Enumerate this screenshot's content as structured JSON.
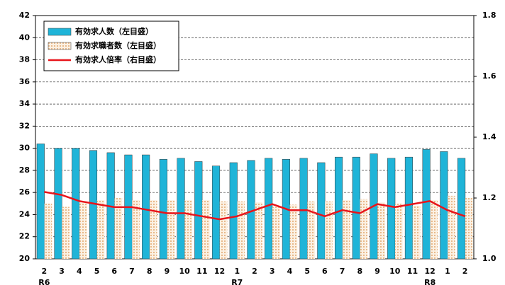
{
  "chart_data": {
    "type": "bar_line",
    "categories": [
      "2",
      "3",
      "4",
      "5",
      "6",
      "7",
      "8",
      "9",
      "10",
      "11",
      "12",
      "1",
      "2",
      "3",
      "4",
      "5",
      "6",
      "7",
      "8",
      "9",
      "10",
      "11",
      "12",
      "1",
      "2"
    ],
    "x_group_labels": [
      "R6",
      null,
      null,
      null,
      null,
      null,
      null,
      null,
      null,
      null,
      null,
      "R7",
      null,
      null,
      null,
      null,
      null,
      null,
      null,
      null,
      null,
      null,
      "R8",
      null,
      null
    ],
    "series": [
      {
        "name": "有効求人数（左目盛）",
        "color": "#1fb4d8",
        "kind": "bar",
        "values": [
          30.4,
          30.0,
          30.0,
          29.8,
          29.6,
          29.4,
          29.4,
          29.0,
          29.1,
          28.8,
          28.4,
          28.7,
          28.9,
          29.1,
          29.0,
          29.1,
          28.7,
          29.2,
          29.2,
          29.5,
          29.1,
          29.2,
          29.9,
          29.7,
          29.1
        ]
      },
      {
        "name": "有効求職者数（左目盛）",
        "color": "#f5dcc0",
        "kind": "bar",
        "values": [
          25.0,
          24.7,
          25.2,
          25.3,
          25.5,
          25.3,
          25.3,
          25.3,
          25.3,
          25.3,
          25.2,
          25.2,
          25.1,
          24.7,
          24.9,
          25.2,
          25.2,
          25.3,
          25.4,
          25.1,
          25.0,
          24.8,
          25.3,
          25.7,
          25.5
        ]
      },
      {
        "name": "有効求人倍率（右目盛）",
        "color": "#e8141a",
        "kind": "line",
        "axis": "y2",
        "values": [
          1.22,
          1.21,
          1.19,
          1.18,
          1.17,
          1.17,
          1.16,
          1.15,
          1.15,
          1.14,
          1.13,
          1.14,
          1.16,
          1.18,
          1.16,
          1.16,
          1.14,
          1.16,
          1.15,
          1.18,
          1.17,
          1.18,
          1.19,
          1.16,
          1.14
        ]
      }
    ],
    "ylim": [
      20,
      42
    ],
    "yticks": [
      20,
      22,
      24,
      26,
      28,
      30,
      32,
      34,
      36,
      38,
      40,
      42
    ],
    "y2lim": [
      1,
      1.8
    ],
    "y2ticks": [
      {
        "value": 1,
        "label": "1.0"
      },
      1.2,
      1.4,
      1.6,
      1.8
    ],
    "grid": true
  }
}
